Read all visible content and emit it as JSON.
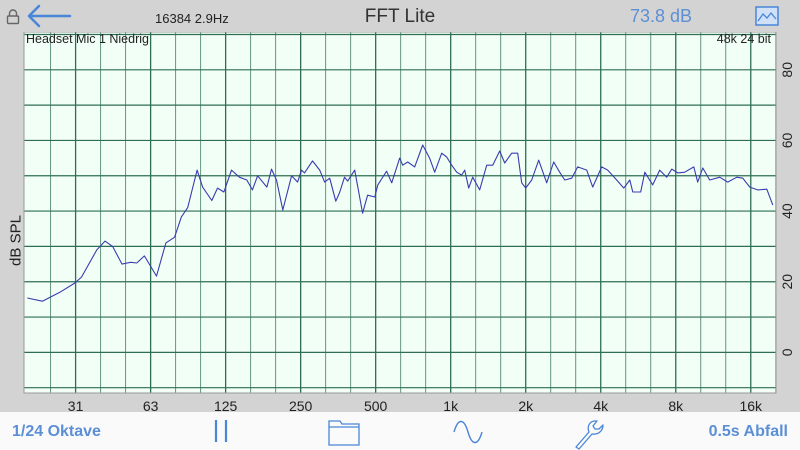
{
  "header": {
    "fft_info": "16384  2.9Hz",
    "title": "FFT Lite",
    "level": "73.8 dB",
    "device": "Headset Mic 1 Niedrig",
    "format": "48k 24 bit"
  },
  "toolbar": {
    "resolution_label": "1/24 Oktave",
    "decay_label": "0.5s Abfall",
    "icons": [
      "pause-icon",
      "folder-icon",
      "sine-wave-icon",
      "wrench-icon"
    ]
  },
  "colors": {
    "accent": "#5b8fd6",
    "curve": "#3b3bb0",
    "grid": "#2f6e52",
    "plot_background": "#f1fff6"
  },
  "chart_data": {
    "type": "line",
    "ylabel": "dB SPL",
    "xscale": "log",
    "xlim": [
      19.4,
      20200
    ],
    "ylim": [
      -11.5,
      90.7
    ],
    "grid": true,
    "x_tick_labels": [
      "31",
      "63",
      "125",
      "250",
      "500",
      "1k",
      "2k",
      "4k",
      "8k",
      "16k"
    ],
    "x_tick_values": [
      31.25,
      62.5,
      125,
      250,
      500,
      1000,
      2000,
      4000,
      8000,
      16000
    ],
    "y_ticks": [
      0,
      20,
      40,
      60,
      80
    ],
    "series": [
      {
        "x": [
          20,
          23,
          27,
          31,
          33,
          38,
          41,
          44,
          48,
          52,
          55,
          59,
          66,
          72,
          78,
          83,
          88,
          96,
          101,
          110,
          116,
          123,
          132,
          142,
          152,
          160,
          168,
          183,
          191,
          200,
          212,
          230,
          243,
          252,
          259,
          279,
          298,
          312,
          327,
          346,
          359,
          375,
          386,
          412,
          443,
          464,
          496,
          510,
          553,
          580,
          624,
          642,
          672,
          717,
          772,
          823,
          863,
          920,
          964,
          1009,
          1057,
          1107,
          1138,
          1181,
          1225,
          1307,
          1395,
          1474,
          1573,
          1647,
          1757,
          1857,
          1928,
          2000,
          2114,
          2255,
          2428,
          2590,
          2738,
          2868,
          3059,
          3234,
          3514,
          3714,
          4036,
          4267,
          4637,
          4948,
          5230,
          5377,
          5788,
          6008,
          6467,
          6900,
          7360,
          7710,
          8150,
          8690,
          9450,
          9800,
          10270,
          10950,
          12020,
          12930,
          14060,
          14860,
          15860,
          17060,
          18550,
          19610
        ],
        "y": [
          15.4,
          14.5,
          17,
          19.6,
          21.3,
          29,
          31.5,
          30,
          25,
          25.5,
          25.3,
          27.3,
          21.6,
          31,
          32.6,
          38.3,
          41,
          51.6,
          46.8,
          43,
          46.5,
          45.4,
          51.6,
          49.6,
          48.8,
          46,
          50,
          46.8,
          51.9,
          48.8,
          40.3,
          50,
          48.2,
          51.6,
          50.8,
          54.2,
          51.6,
          48.2,
          49.3,
          42.8,
          45.4,
          49.6,
          48.5,
          51.6,
          39.4,
          44.5,
          44,
          47.4,
          51.3,
          48,
          55,
          53,
          53.9,
          52.5,
          58.7,
          55,
          51,
          56.4,
          55.3,
          53,
          51,
          50.2,
          51.6,
          46.5,
          49.6,
          46,
          53,
          53,
          57,
          53.6,
          56.4,
          56.4,
          48,
          46.5,
          48.8,
          54.4,
          48,
          53.9,
          51,
          48.8,
          49.3,
          52.5,
          51.6,
          46.8,
          52.5,
          51.6,
          48.8,
          46.5,
          48.8,
          45.4,
          45.4,
          51,
          47.4,
          51.6,
          49.6,
          51.9,
          50.8,
          51,
          52.5,
          48.2,
          52.2,
          48.8,
          49.6,
          48.2,
          49.6,
          49.3,
          46.8,
          46,
          46.2,
          41.7
        ]
      }
    ]
  }
}
